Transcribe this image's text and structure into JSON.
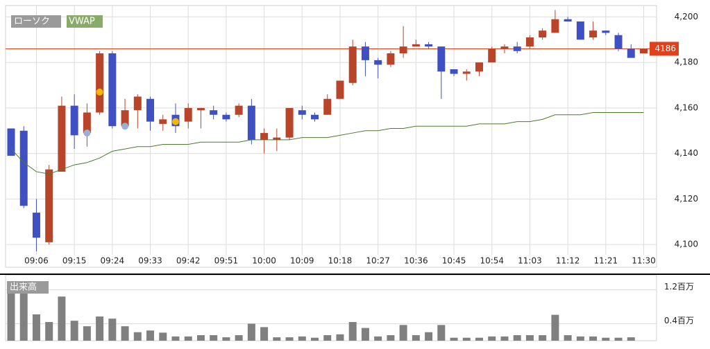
{
  "chart_data": [
    {
      "type": "candlestick",
      "legend": [
        "ローソク",
        "VWAP"
      ],
      "categories": [
        null,
        null,
        "09:06",
        null,
        null,
        "09:15",
        null,
        null,
        "09:24",
        null,
        null,
        "09:33",
        null,
        null,
        "09:42",
        null,
        null,
        "09:51",
        null,
        null,
        "10:00",
        null,
        null,
        "10:09",
        null,
        null,
        "10:18",
        null,
        null,
        "10:27",
        null,
        null,
        "10:36",
        null,
        null,
        "10:45",
        null,
        null,
        "10:54",
        null,
        null,
        "11:03",
        null,
        null,
        "11:12",
        null,
        null,
        "11:21",
        null,
        null,
        "11:30"
      ],
      "open": [
        4151,
        4150,
        4114,
        4101,
        4132,
        4161,
        4149,
        4158,
        4184,
        4152,
        4159,
        4164,
        4153,
        4157,
        4154,
        4159,
        4159,
        4157,
        4157,
        4161,
        4146,
        4146,
        4147,
        4159,
        4157,
        4157,
        4164,
        4171,
        4187,
        4181,
        4179,
        4184,
        4187,
        4188,
        4187,
        4177,
        4175,
        4176,
        4180,
        4186,
        4187,
        4187,
        4191,
        4193,
        4199,
        4198,
        4191,
        4194,
        4192,
        4186,
        4184
      ],
      "high": [
        4151,
        4152,
        4120,
        4135,
        4165,
        4166,
        4162,
        4185,
        4185,
        4164,
        4166,
        4165,
        4157,
        4162,
        4162,
        4160,
        4161,
        4158,
        4162,
        4164,
        4151,
        4151,
        4160,
        4161,
        4158,
        4166,
        4172,
        4190,
        4189,
        4182,
        4185,
        4196,
        4190,
        4189,
        4187,
        4177,
        4177,
        4180,
        4187,
        4188,
        4189,
        4192,
        4195,
        4203,
        4200,
        4198,
        4198,
        4194,
        4193,
        4188,
        4186
      ],
      "low": [
        4139,
        4116,
        4097,
        4100,
        4132,
        4142,
        4143,
        4157,
        4151,
        4151,
        4151,
        4150,
        4150,
        4149,
        4151,
        4151,
        4155,
        4154,
        4156,
        4144,
        4140,
        4141,
        4146,
        4155,
        4154,
        4157,
        4164,
        4170,
        4174,
        4173,
        4178,
        4182,
        4187,
        4186,
        4164,
        4174,
        4172,
        4174,
        4180,
        4184,
        4184,
        4186,
        4190,
        4193,
        4198,
        4190,
        4190,
        4192,
        4185,
        4182,
        4184
      ],
      "close": [
        4139,
        4117,
        4103,
        4133,
        4161,
        4148,
        4158,
        4184,
        4152,
        4159,
        4165,
        4154,
        4155,
        4152,
        4160,
        4160,
        4157,
        4155,
        4161,
        4146,
        4149,
        4147,
        4160,
        4157,
        4155,
        4164,
        4172,
        4187,
        4181,
        4179,
        4184,
        4187,
        4188,
        4187,
        4176,
        4175,
        4176,
        4180,
        4186,
        4187,
        4185,
        4191,
        4194,
        4199,
        4198,
        4190,
        4194,
        4193,
        4186,
        4182,
        4186
      ],
      "up_color": "#b8442a",
      "down_color": "#3f51c2",
      "vwap": {
        "name": "VWAP",
        "color": "#4a7a2a",
        "values": [
          4142,
          4136,
          4132,
          4131,
          4133,
          4135,
          4136,
          4138,
          4141,
          4142,
          4143,
          4143,
          4144,
          4144,
          4144,
          4145,
          4145,
          4145,
          4145,
          4146,
          4146,
          4146,
          4146,
          4147,
          4147,
          4147,
          4148,
          4149,
          4150,
          4150,
          4151,
          4151,
          4152,
          4152,
          4152,
          4152,
          4152,
          4153,
          4153,
          4153,
          4154,
          4154,
          4155,
          4157,
          4157,
          4157,
          4158,
          4158,
          4158,
          4158,
          4158
        ]
      },
      "markers": [
        {
          "color": "#f5b800",
          "values": [
            null,
            null,
            null,
            null,
            null,
            null,
            null,
            4167,
            null,
            null,
            null,
            null,
            null,
            4154,
            null,
            null,
            null,
            null,
            null,
            null,
            null,
            null,
            null,
            null,
            null,
            null,
            null,
            null,
            null,
            null,
            null,
            null,
            null,
            null,
            null,
            null,
            null,
            null,
            null,
            null,
            null,
            null,
            null,
            null,
            null,
            null,
            null,
            null,
            null,
            null,
            null
          ]
        },
        {
          "color": "#9aafd6",
          "values": [
            null,
            null,
            null,
            null,
            null,
            null,
            4149,
            null,
            null,
            4152,
            null,
            null,
            null,
            null,
            null,
            null,
            null,
            null,
            null,
            null,
            null,
            null,
            null,
            null,
            null,
            null,
            null,
            null,
            null,
            null,
            null,
            null,
            null,
            null,
            null,
            null,
            null,
            null,
            null,
            null,
            null,
            null,
            null,
            null,
            null,
            null,
            null,
            null,
            null,
            null,
            null
          ]
        }
      ],
      "last_price": 4186,
      "last_color": "#e0401c",
      "ylim": [
        4090,
        4205
      ],
      "yticks": [
        {
          "value": 4100,
          "label": "4,100"
        },
        {
          "value": 4120,
          "label": "4,120"
        },
        {
          "value": 4140,
          "label": "4,140"
        },
        {
          "value": 4160,
          "label": "4,160"
        },
        {
          "value": 4180,
          "label": "4,180"
        },
        {
          "value": 4200,
          "label": "4,200"
        }
      ],
      "grid": true
    },
    {
      "type": "bar",
      "title": "出来高",
      "values": [
        1.38,
        1.33,
        0.62,
        0.44,
        1.04,
        0.47,
        0.34,
        0.57,
        0.52,
        0.34,
        0.2,
        0.24,
        0.19,
        0.1,
        0.1,
        0.13,
        0.13,
        0.08,
        0.13,
        0.4,
        0.32,
        0.08,
        0.08,
        0.1,
        0.07,
        0.13,
        0.15,
        0.44,
        0.3,
        0.1,
        0.13,
        0.37,
        0.13,
        0.2,
        0.37,
        0.07,
        0.07,
        0.07,
        0.1,
        0.1,
        0.13,
        0.13,
        0.13,
        0.61,
        0.13,
        0.1,
        0.1,
        0.07,
        0.07,
        0.08,
        0
      ],
      "color": "#808080",
      "ylim": [
        0,
        1.55
      ],
      "yticks": [
        {
          "value": 0.4,
          "label": "0.4百万"
        },
        {
          "value": 1.2,
          "label": "1.2百万"
        }
      ],
      "grid": true
    }
  ]
}
